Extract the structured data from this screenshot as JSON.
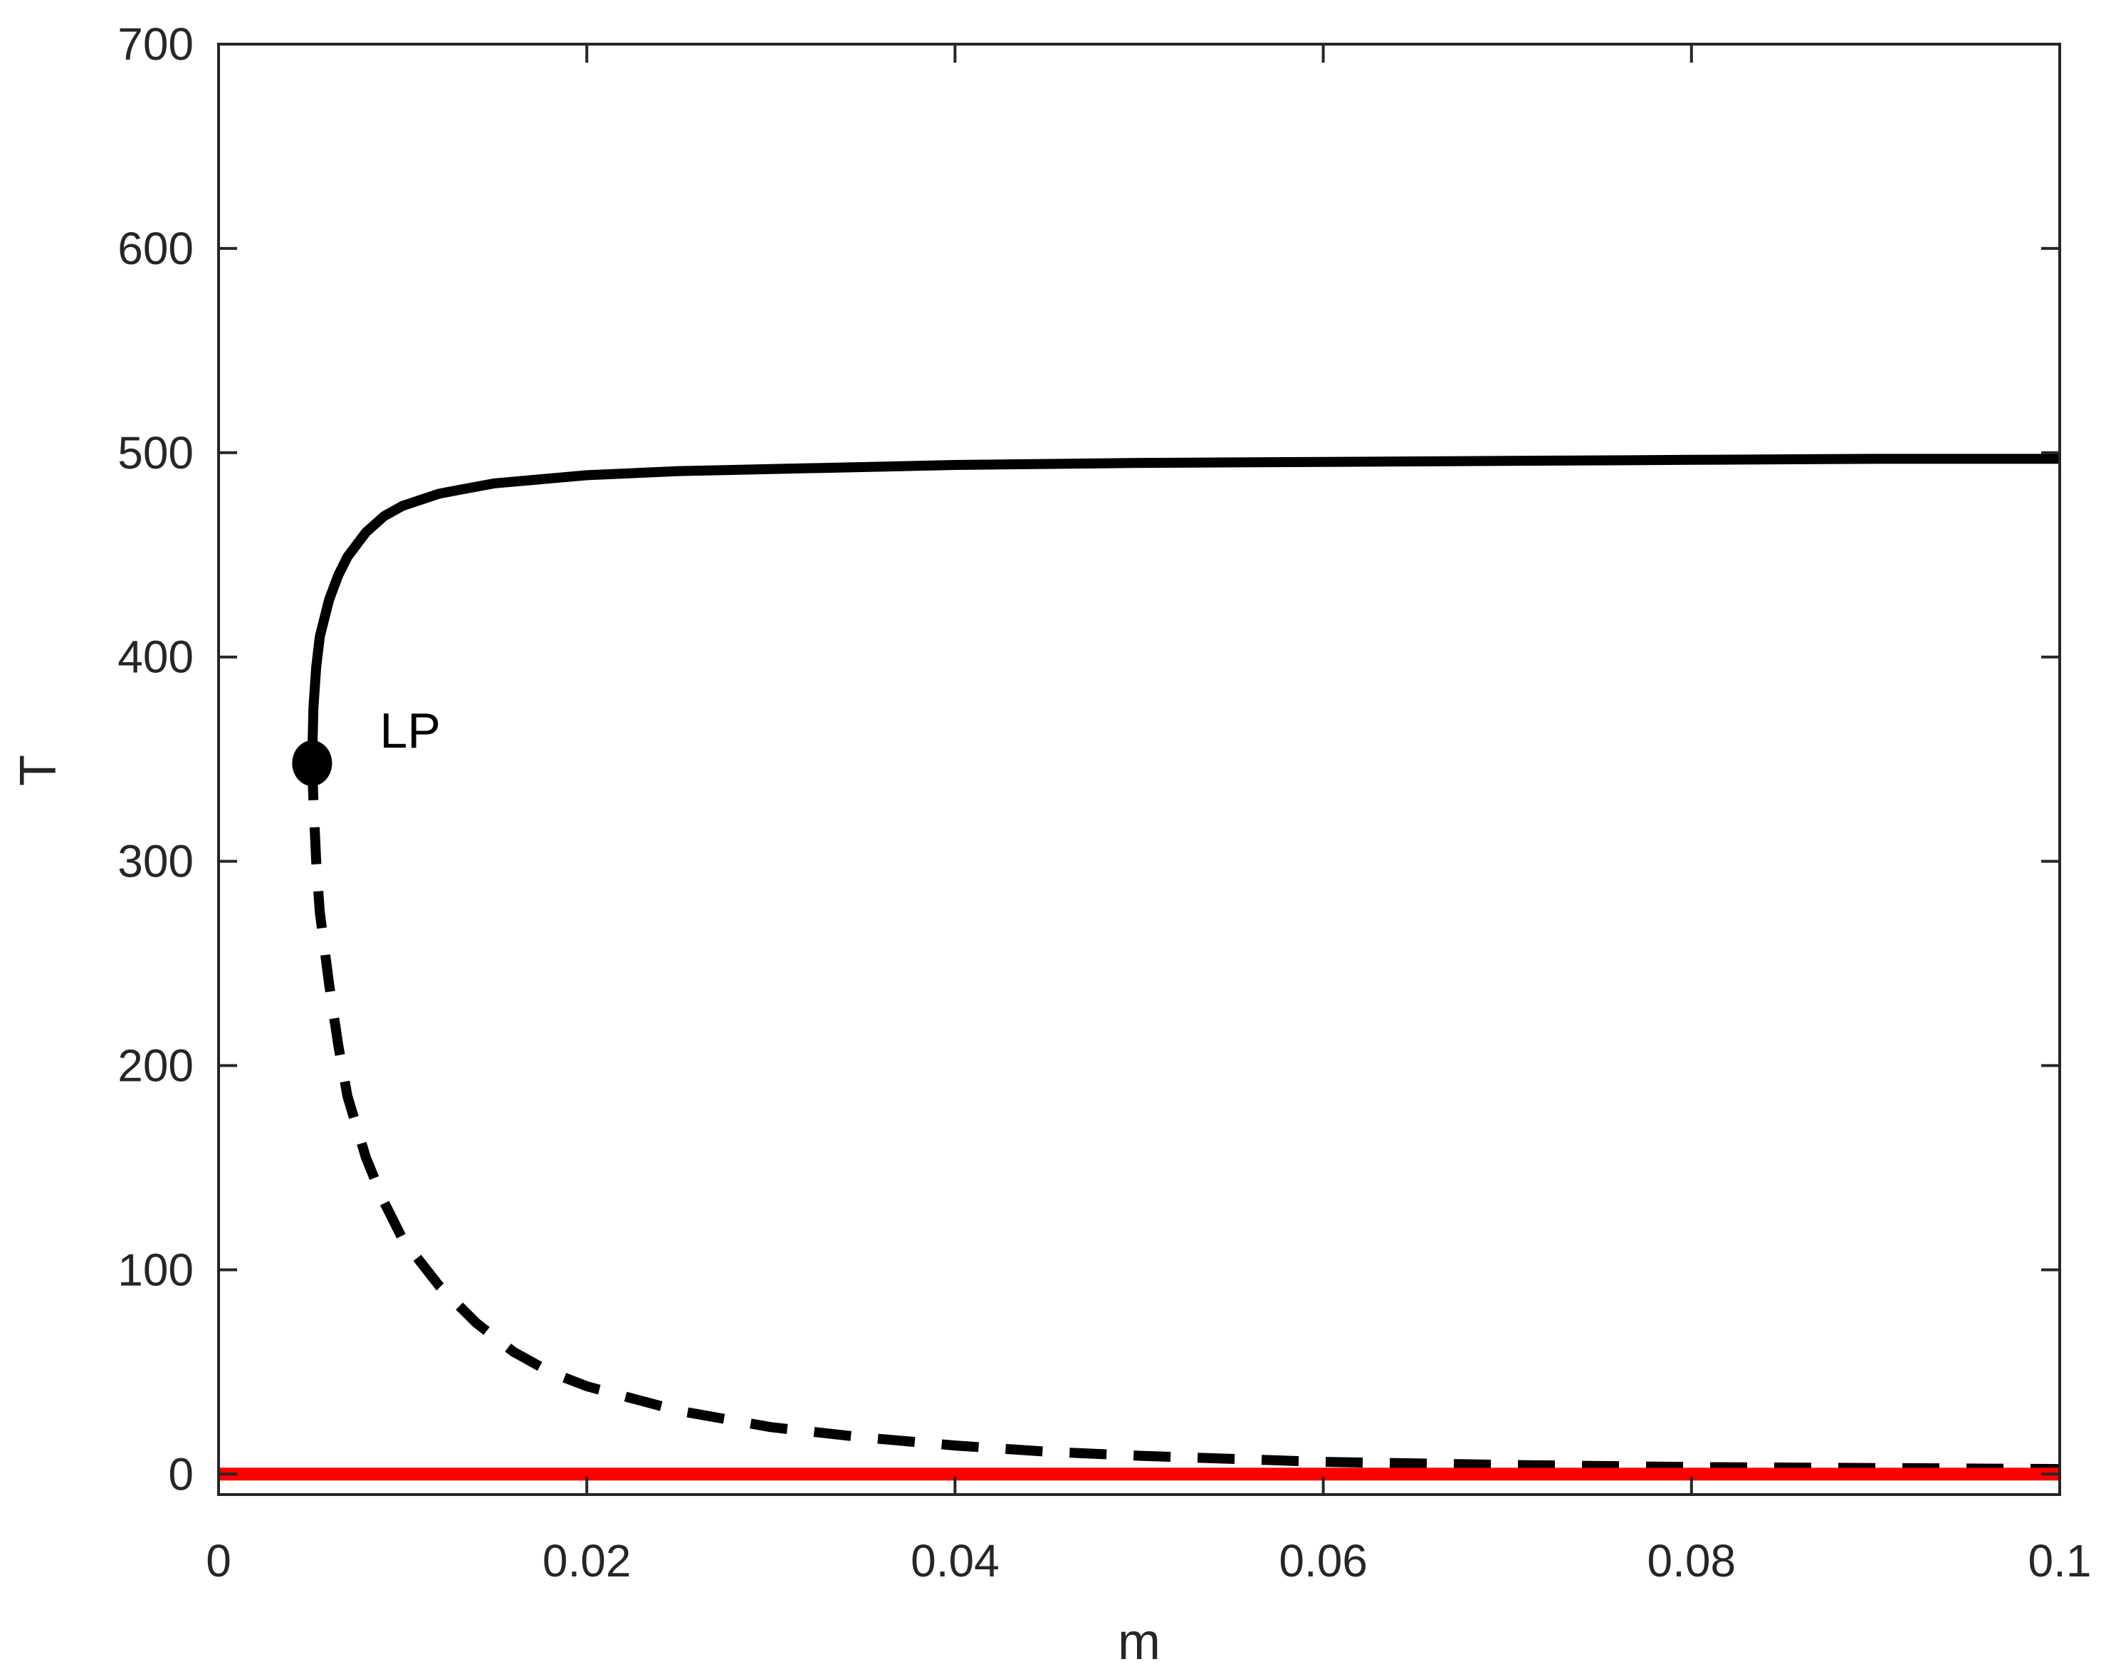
{
  "chart_data": {
    "type": "line",
    "title": "",
    "xlabel": "m",
    "ylabel": "T",
    "xlim": [
      0,
      0.1
    ],
    "ylim": [
      -10,
      700
    ],
    "x_ticks": [
      0,
      0.02,
      0.04,
      0.06,
      0.08,
      0.1
    ],
    "x_tick_labels": [
      "0",
      "0.02",
      "0.04",
      "0.06",
      "0.08",
      "0.1"
    ],
    "y_ticks": [
      0,
      100,
      200,
      300,
      400,
      500,
      600,
      700
    ],
    "y_tick_labels": [
      "0",
      "100",
      "200",
      "300",
      "400",
      "500",
      "600",
      "700"
    ],
    "grid": false,
    "series": [
      {
        "style": "solid",
        "color": "#000000",
        "points": [
          [
            0.00508,
            348
          ],
          [
            0.00515,
            375
          ],
          [
            0.0053,
            395
          ],
          [
            0.0055,
            410
          ],
          [
            0.006,
            428
          ],
          [
            0.0065,
            440
          ],
          [
            0.007,
            449
          ],
          [
            0.008,
            461
          ],
          [
            0.009,
            469
          ],
          [
            0.01,
            474
          ],
          [
            0.012,
            480
          ],
          [
            0.015,
            485
          ],
          [
            0.02,
            489
          ],
          [
            0.025,
            491
          ],
          [
            0.03,
            492
          ],
          [
            0.04,
            494
          ],
          [
            0.05,
            495
          ],
          [
            0.06,
            495.5
          ],
          [
            0.07,
            496
          ],
          [
            0.08,
            496.5
          ],
          [
            0.09,
            497
          ],
          [
            0.1,
            497
          ]
        ]
      },
      {
        "style": "dashed",
        "color": "#000000",
        "points": [
          [
            0.00508,
            348
          ],
          [
            0.00515,
            330
          ],
          [
            0.0053,
            300
          ],
          [
            0.0055,
            275
          ],
          [
            0.006,
            240
          ],
          [
            0.0065,
            210
          ],
          [
            0.007,
            185
          ],
          [
            0.008,
            155
          ],
          [
            0.009,
            133
          ],
          [
            0.01,
            115
          ],
          [
            0.012,
            92
          ],
          [
            0.014,
            74
          ],
          [
            0.016,
            60
          ],
          [
            0.018,
            50
          ],
          [
            0.02,
            43
          ],
          [
            0.025,
            31
          ],
          [
            0.03,
            23
          ],
          [
            0.035,
            18
          ],
          [
            0.04,
            14
          ],
          [
            0.045,
            11
          ],
          [
            0.05,
            9
          ],
          [
            0.06,
            6
          ],
          [
            0.07,
            4.5
          ],
          [
            0.08,
            3.5
          ],
          [
            0.09,
            3
          ],
          [
            0.1,
            2.5
          ]
        ]
      },
      {
        "style": "solid",
        "color": "#ff0000",
        "points": [
          [
            0,
            0
          ],
          [
            0.1,
            0
          ]
        ]
      }
    ],
    "markers": [
      {
        "x": 0.00508,
        "y": 348,
        "label": "LP"
      }
    ]
  }
}
